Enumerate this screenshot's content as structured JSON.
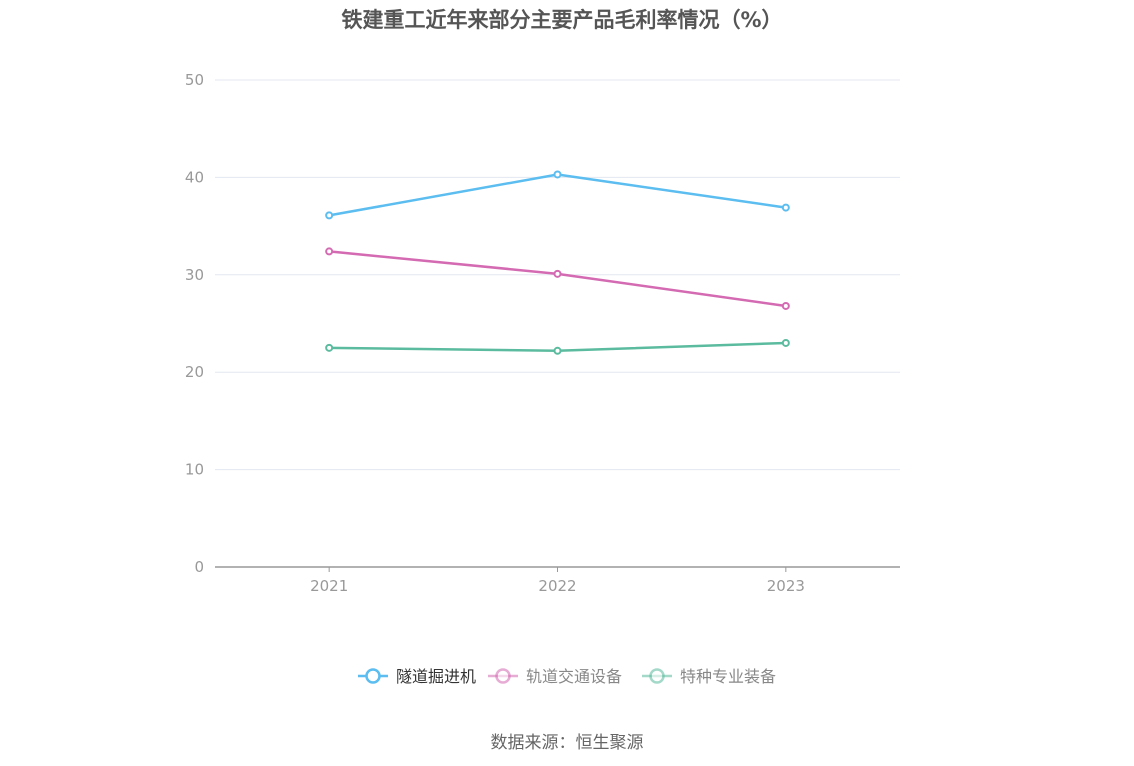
{
  "title": "铁建重工近年来部分主要产品毛利率情况（%）",
  "source": "数据来源：恒生聚源",
  "chart_data": {
    "type": "line",
    "categories": [
      "2021",
      "2022",
      "2023"
    ],
    "ylim": [
      0,
      50
    ],
    "yticks": [
      0,
      10,
      20,
      30,
      40,
      50
    ],
    "grid": true,
    "legend_position": "bottom",
    "series": [
      {
        "name": "隧道掘进机",
        "values": [
          36.1,
          40.3,
          36.9
        ],
        "color": "#5bbdf0"
      },
      {
        "name": "轨道交通设备",
        "values": [
          32.4,
          30.1,
          26.8
        ],
        "color": "#d46ab2"
      },
      {
        "name": "特种专业装备",
        "values": [
          22.5,
          22.2,
          23.0
        ],
        "color": "#5bbb9e"
      }
    ],
    "legend_text_colors": [
      "#333333",
      "#888888",
      "#888888"
    ]
  }
}
